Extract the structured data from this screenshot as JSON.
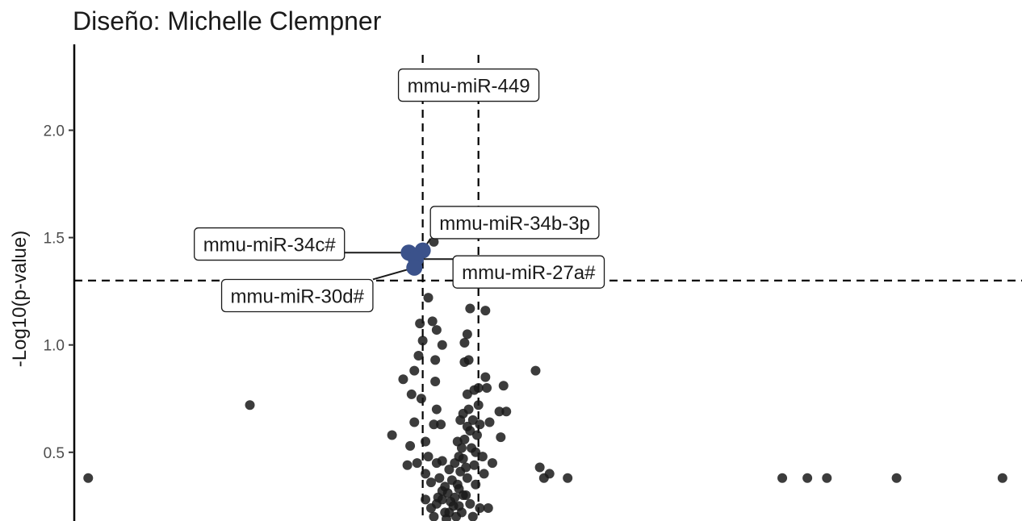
{
  "chart_data": {
    "type": "scatter",
    "title": "Diseño: Michelle Clempner",
    "xlabel": "",
    "ylabel": "-Log10(p-value)",
    "ylim": [
      0.18,
      2.4
    ],
    "xlim": [
      -13.5,
      20.5
    ],
    "y_ticks": [
      {
        "value": 0.5,
        "label": "0.5"
      },
      {
        "value": 1.0,
        "label": "1.0"
      },
      {
        "value": 1.5,
        "label": "1.5"
      },
      {
        "value": 2.0,
        "label": "2.0"
      }
    ],
    "thresholds": {
      "vlines": [
        -1,
        1
      ],
      "hline": 1.3
    },
    "colors": {
      "background_points": "#1a1a1a",
      "highlight_points": "#3b528b",
      "threshold_lines": "#000000"
    },
    "highlighted": [
      {
        "label": "mmu-miR-449",
        "x": -1.2,
        "y": 2.21,
        "label_x": 0.65,
        "label_y": 2.21
      },
      {
        "label": "mmu-miR-34b-3p",
        "x": -1.0,
        "y": 1.44,
        "label_x": 2.3,
        "label_y": 1.57
      },
      {
        "label": "mmu-miR-34c#",
        "x": -1.5,
        "y": 1.43,
        "label_x": -6.5,
        "label_y": 1.47
      },
      {
        "label": "mmu-miR-27a#",
        "x": -1.25,
        "y": 1.4,
        "label_x": 2.8,
        "label_y": 1.34
      },
      {
        "label": "mmu-miR-30d#",
        "x": -1.3,
        "y": 1.36,
        "label_x": -5.5,
        "label_y": 1.23
      }
    ],
    "points": [
      [
        -13.0,
        0.38
      ],
      [
        -7.2,
        0.72
      ],
      [
        3.05,
        0.88
      ],
      [
        3.2,
        0.43
      ],
      [
        3.35,
        0.38
      ],
      [
        3.55,
        0.4
      ],
      [
        4.2,
        0.38
      ],
      [
        11.9,
        0.38
      ],
      [
        12.8,
        0.38
      ],
      [
        13.5,
        0.38
      ],
      [
        16.0,
        0.38
      ],
      [
        19.8,
        0.38
      ],
      [
        -0.6,
        1.48
      ],
      [
        -0.8,
        1.22
      ],
      [
        -1.1,
        1.1
      ],
      [
        -0.65,
        1.11
      ],
      [
        -0.5,
        1.07
      ],
      [
        -1.0,
        1.02
      ],
      [
        -0.3,
        1.0
      ],
      [
        -1.15,
        0.95
      ],
      [
        -0.55,
        0.93
      ],
      [
        -1.3,
        0.88
      ],
      [
        -0.55,
        0.83
      ],
      [
        -1.7,
        0.84
      ],
      [
        -1.4,
        0.77
      ],
      [
        -1.05,
        0.75
      ],
      [
        -0.5,
        0.7
      ],
      [
        -1.3,
        0.64
      ],
      [
        -2.1,
        0.58
      ],
      [
        -0.9,
        0.55
      ],
      [
        -1.45,
        0.53
      ],
      [
        -0.35,
        0.63
      ],
      [
        -0.6,
        0.63
      ],
      [
        -1.2,
        0.45
      ],
      [
        -1.55,
        0.44
      ],
      [
        -0.8,
        0.48
      ],
      [
        -0.5,
        0.45
      ],
      [
        -0.3,
        0.46
      ],
      [
        -0.9,
        0.4
      ],
      [
        -0.7,
        0.36
      ],
      [
        -0.3,
        0.32
      ],
      [
        -0.9,
        0.28
      ],
      [
        -0.5,
        0.26
      ],
      [
        -0.2,
        0.22
      ],
      [
        -0.6,
        0.2
      ],
      [
        -0.3,
        0.28
      ],
      [
        -0.7,
        0.24
      ],
      [
        0.7,
        1.17
      ],
      [
        1.25,
        1.16
      ],
      [
        0.6,
        1.05
      ],
      [
        0.5,
        1.01
      ],
      [
        0.65,
        0.93
      ],
      [
        0.5,
        0.92
      ],
      [
        1.25,
        0.85
      ],
      [
        1.0,
        0.8
      ],
      [
        1.9,
        0.81
      ],
      [
        0.85,
        0.79
      ],
      [
        0.6,
        0.77
      ],
      [
        1.0,
        0.72
      ],
      [
        0.65,
        0.7
      ],
      [
        2.0,
        0.69
      ],
      [
        1.75,
        0.69
      ],
      [
        0.45,
        0.68
      ],
      [
        0.8,
        0.65
      ],
      [
        1.05,
        0.63
      ],
      [
        0.35,
        0.65
      ],
      [
        0.6,
        0.62
      ],
      [
        1.8,
        0.57
      ],
      [
        1.15,
        0.48
      ],
      [
        1.5,
        0.45
      ],
      [
        0.9,
        0.5
      ],
      [
        0.45,
        0.47
      ],
      [
        0.3,
        0.48
      ],
      [
        1.2,
        0.4
      ],
      [
        0.9,
        0.35
      ],
      [
        0.55,
        0.3
      ],
      [
        0.3,
        0.33
      ],
      [
        0.7,
        0.26
      ],
      [
        1.05,
        0.24
      ],
      [
        0.4,
        0.22
      ],
      [
        0.8,
        0.2
      ],
      [
        1.35,
        0.24
      ],
      [
        0.1,
        0.25
      ],
      [
        -0.05,
        0.22
      ],
      [
        0.15,
        0.29
      ],
      [
        0.25,
        0.35
      ],
      [
        -0.1,
        0.31
      ],
      [
        0.05,
        0.37
      ],
      [
        0.35,
        0.41
      ],
      [
        0.2,
        0.2
      ],
      [
        0.0,
        0.27
      ],
      [
        0.3,
        0.25
      ],
      [
        -0.15,
        0.19
      ],
      [
        0.45,
        0.3
      ],
      [
        0.6,
        0.38
      ],
      [
        0.75,
        0.52
      ],
      [
        0.95,
        0.58
      ],
      [
        1.3,
        0.8
      ],
      [
        1.4,
        0.64
      ],
      [
        0.7,
        0.6
      ],
      [
        0.25,
        0.55
      ],
      [
        0.5,
        0.56
      ],
      [
        -0.4,
        0.38
      ],
      [
        -0.2,
        0.34
      ],
      [
        -0.45,
        0.29
      ],
      [
        -0.05,
        0.42
      ],
      [
        0.15,
        0.45
      ],
      [
        0.4,
        0.52
      ],
      [
        0.55,
        0.43
      ],
      [
        0.85,
        0.44
      ]
    ]
  }
}
